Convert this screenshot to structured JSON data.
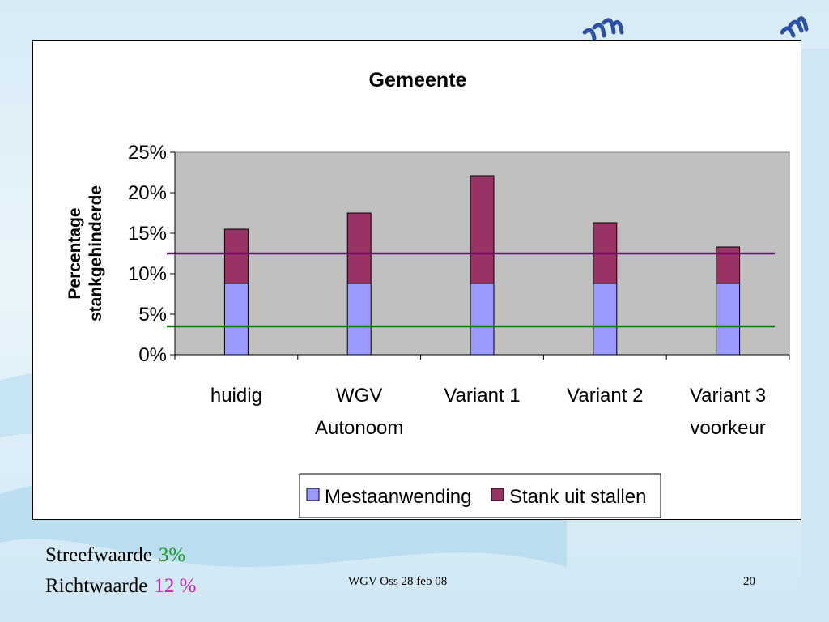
{
  "slide": {
    "streefwaarde_label": "Streefwaarde",
    "streefwaarde_value": "3%",
    "streefwaarde_color": "#1a9b1a",
    "richtwaarde_label": "Richtwaarde",
    "richtwaarde_value": "12 %",
    "richtwaarde_color": "#c71cc7",
    "footer_center": "WGV Oss 28 feb 08",
    "page_number": "20"
  },
  "chart_data": {
    "type": "bar",
    "stacked": true,
    "title": "Gemeente",
    "ylabel": "Percentage stankgehinderde",
    "ylabel_lines": [
      "Percentage",
      "stankgehinderde"
    ],
    "xlabel": "",
    "ylim": [
      0,
      25
    ],
    "yticks": [
      0,
      5,
      10,
      15,
      20,
      25
    ],
    "ytick_labels": [
      "0%",
      "5%",
      "10%",
      "15%",
      "20%",
      "25%"
    ],
    "categories": [
      [
        "huidig"
      ],
      [
        "WGV",
        "Autonoom"
      ],
      [
        "Variant 1"
      ],
      [
        "Variant 2"
      ],
      [
        "Variant 3",
        "voorkeur"
      ]
    ],
    "series": [
      {
        "name": "Mestaanwending",
        "color": "#9999ff",
        "values": [
          8.8,
          8.8,
          8.8,
          8.8,
          8.8
        ]
      },
      {
        "name": "Stank uit stallen",
        "color": "#993366",
        "values": [
          6.7,
          8.7,
          13.3,
          7.5,
          4.5
        ]
      }
    ],
    "reference_lines": [
      {
        "value": 12.5,
        "color": "#800080"
      },
      {
        "value": 3.5,
        "color": "#008000"
      }
    ],
    "plot_background": "#c0c0c0",
    "grid": false,
    "legend_position": "bottom"
  }
}
